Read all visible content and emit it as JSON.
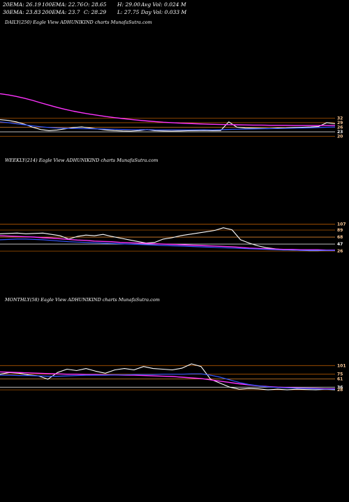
{
  "header": {
    "row1": [
      "20EMA: 26.19",
      "100EMA: 22.76",
      "O: 28.65",
      "H: 29.00",
      "Avg Vol: 0.024  M"
    ],
    "row2": [
      "30EMA: 23.83",
      "200EMA: 23.7",
      "C: 28.29",
      "L: 27.75",
      "Day Vol: 0.033 M"
    ]
  },
  "colors": {
    "background": "#000000",
    "price": "#ffffff",
    "ema_magenta": "#ff33ff",
    "ema_blue": "#3355ff",
    "support": "#cc6600"
  },
  "chart_data": [
    {
      "type": "line",
      "title": "DAILY(250) Eagle   View  ADHUNIKIND charts MunafaSutra.com",
      "right_labels": [
        "32",
        "29",
        "26",
        "23",
        "20"
      ],
      "series": [
        {
          "key": "price",
          "values": [
            31,
            30.5,
            29.5,
            28,
            26,
            24.5,
            23.8,
            24.2,
            25,
            25.8,
            26.2,
            25.5,
            24.8,
            24.2,
            23.8,
            23.6,
            23.5,
            23.8,
            24.5,
            23.7,
            23.6,
            23.5,
            23.6,
            23.7,
            23.8,
            23.9,
            23.7,
            23.8,
            29.5,
            26,
            25.5,
            25.4,
            25.3,
            25.2,
            25.5,
            25.6,
            25.8,
            26,
            26.2,
            26.5,
            29,
            28.3
          ]
        },
        {
          "key": "ema_magenta",
          "values": [
            48,
            47.2,
            46.2,
            45,
            43.6,
            42,
            40.5,
            39,
            37.7,
            36.5,
            35.5,
            34.6,
            33.8,
            33,
            32.3,
            31.7,
            31.1,
            30.6,
            30.1,
            29.7,
            29.3,
            29,
            28.7,
            28.5,
            28.3,
            28.1,
            27.9,
            27.8,
            27.7,
            27.6,
            27.5,
            27.4,
            27.4,
            27.3,
            27.3,
            27.3,
            27.2,
            27.2,
            27.2,
            27.2,
            27.2,
            27.2
          ]
        },
        {
          "key": "ema_blue",
          "values": [
            29.5,
            29,
            28.3,
            27.6,
            26.9,
            26.3,
            25.8,
            25.5,
            25.3,
            25.2,
            25.1,
            25,
            24.9,
            24.8,
            24.7,
            24.6,
            24.5,
            24.4,
            24.4,
            24.3,
            24.3,
            24.3,
            24.3,
            24.3,
            24.3,
            24.3,
            24.3,
            24.4,
            24.6,
            24.7,
            24.8,
            24.9,
            25,
            25.1,
            25.2,
            25.3,
            25.4,
            25.5,
            25.6,
            25.8,
            26,
            26.2
          ]
        }
      ]
    },
    {
      "type": "line",
      "title": "WEEKLY(214) Eagle   View  ADHUNIKIND charts MunafaSutra.com",
      "right_labels": [
        "107",
        "89",
        "68",
        "47",
        "26"
      ],
      "series": [
        {
          "key": "price",
          "values": [
            78,
            79,
            80,
            78,
            79,
            80,
            76,
            72,
            62,
            70,
            74,
            72,
            76,
            70,
            65,
            60,
            55,
            50,
            52,
            62,
            66,
            72,
            76,
            80,
            84,
            88,
            96,
            90,
            60,
            50,
            42,
            36,
            33,
            30,
            29,
            28,
            27,
            27,
            28,
            28
          ]
        },
        {
          "key": "ema_magenta",
          "values": [
            72,
            71,
            70,
            69,
            68,
            66,
            65,
            63,
            61,
            59,
            58,
            56,
            55,
            54,
            52,
            51,
            50,
            49,
            48,
            47,
            46,
            45,
            44,
            43,
            42,
            41,
            40,
            39,
            37,
            35,
            34,
            33,
            32,
            31,
            31,
            30,
            30,
            30,
            29,
            29
          ]
        },
        {
          "key": "ema_blue",
          "values": [
            60,
            61,
            62,
            62,
            61,
            60,
            58,
            56,
            54,
            53,
            52,
            51,
            50,
            49,
            48,
            47,
            46,
            45,
            44,
            43,
            42,
            41,
            40,
            39,
            38,
            37,
            36,
            35,
            34,
            33,
            32,
            31,
            30,
            29,
            29,
            28,
            28,
            28,
            28,
            28
          ]
        }
      ]
    },
    {
      "type": "line",
      "title": "MONTHLY(58) Eagle   View  ADHUNIKIND charts MunafaSutra.com",
      "right_labels": [
        "101",
        "75",
        "61",
        "36",
        "28"
      ],
      "series": [
        {
          "key": "price",
          "values": [
            75,
            80,
            78,
            73,
            70,
            60,
            80,
            90,
            86,
            92,
            84,
            78,
            88,
            92,
            88,
            98,
            92,
            90,
            88,
            93,
            106,
            98,
            60,
            48,
            36,
            30,
            32,
            31,
            28,
            30,
            28,
            30,
            29,
            28,
            30,
            28
          ]
        },
        {
          "key": "ema_magenta",
          "values": [
            82,
            81,
            80,
            79,
            78,
            77,
            76,
            75,
            75,
            74,
            74,
            73,
            73,
            72,
            72,
            71,
            70,
            69,
            68,
            66,
            64,
            62,
            58,
            54,
            50,
            46,
            43,
            40,
            38,
            36,
            35,
            34,
            33,
            32,
            31,
            31
          ]
        },
        {
          "key": "ema_blue",
          "values": [
            72,
            72,
            71,
            71,
            70,
            69,
            69,
            70,
            71,
            72,
            72,
            72,
            73,
            73,
            74,
            74,
            74,
            75,
            75,
            75,
            76,
            76,
            72,
            66,
            58,
            50,
            44,
            40,
            37,
            35,
            34,
            33,
            32,
            31,
            30,
            30
          ]
        }
      ]
    }
  ]
}
